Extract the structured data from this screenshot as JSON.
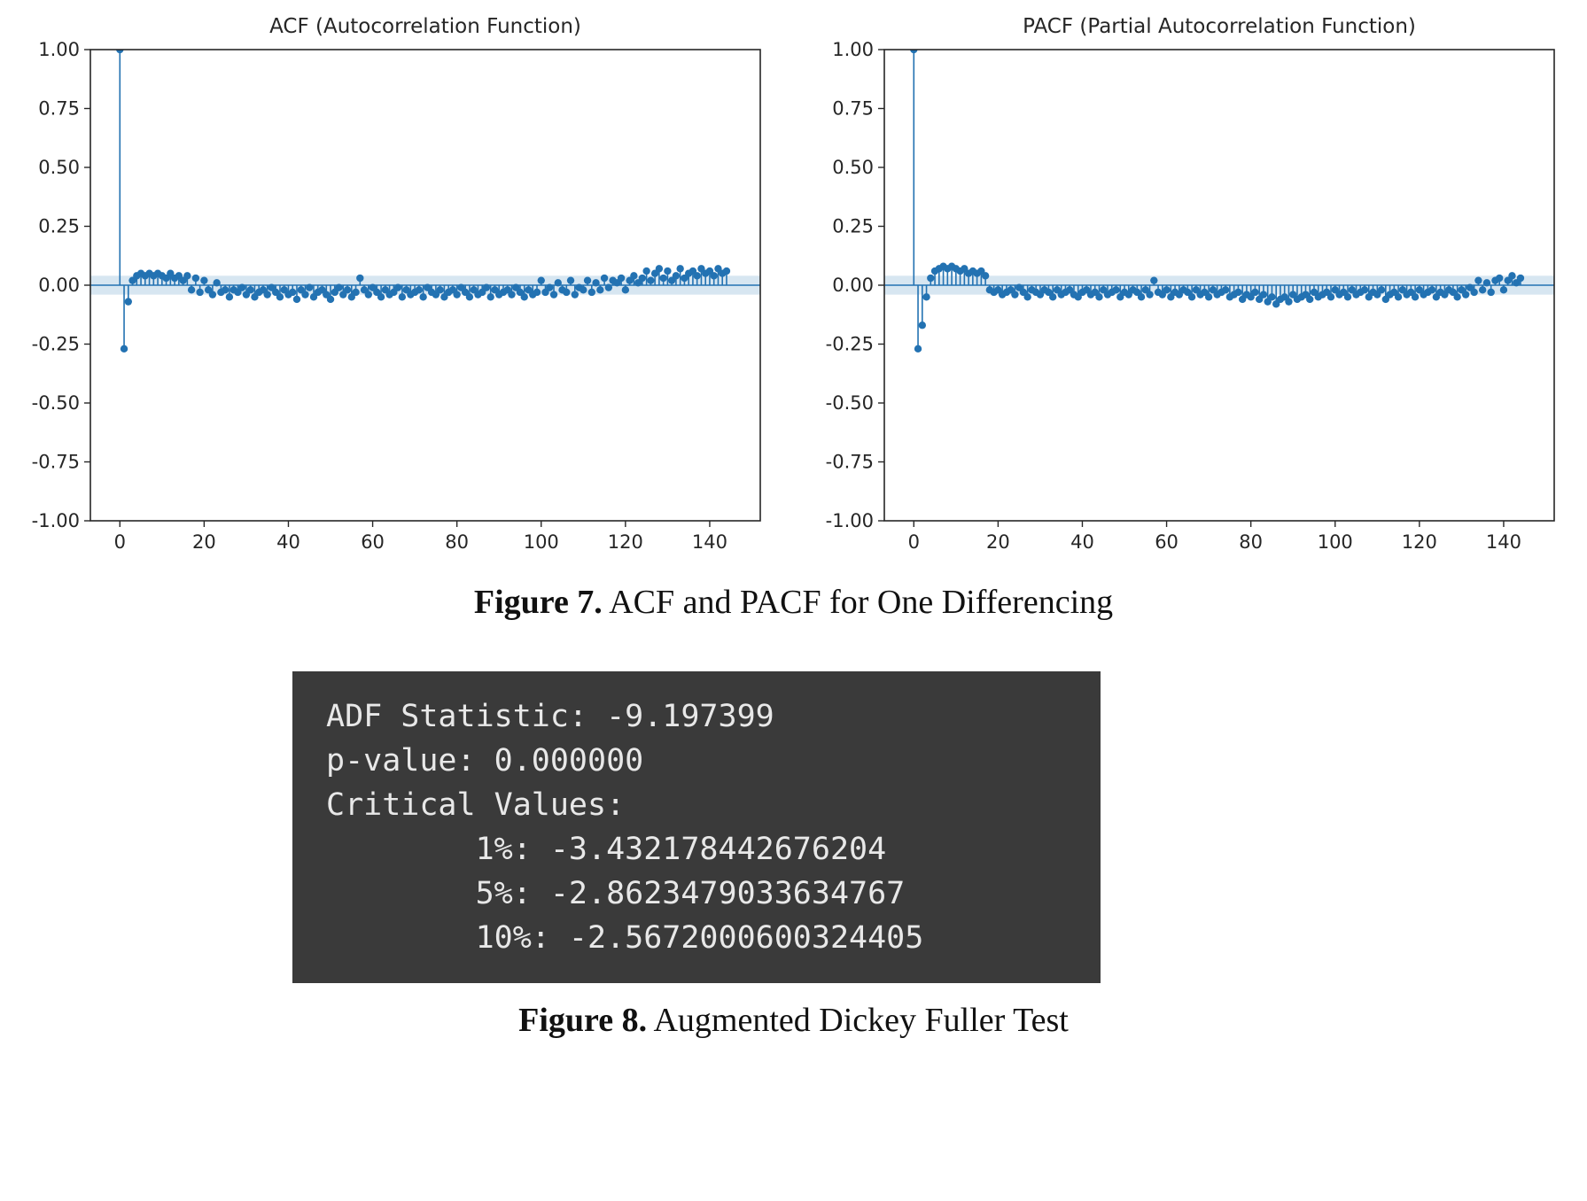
{
  "figure7": {
    "caption_label": "Figure 7.",
    "caption_text": " ACF and PACF for One Differencing"
  },
  "figure8": {
    "caption_label": "Figure 8.",
    "caption_text": " Augmented Dickey Fuller Test"
  },
  "console": {
    "background": "#3a3a3a",
    "text_color": "#e8e8e8",
    "lines": [
      "ADF Statistic: -9.197399",
      "p-value: 0.000000",
      "Critical Values:",
      "        1%: -3.432178442676204",
      "        5%: -2.8623479033634767",
      "        10%: -2.5672000600324405"
    ]
  },
  "chart_data": [
    {
      "type": "scatter",
      "style": "stem",
      "title": "ACF (Autocorrelation Function)",
      "xlabel": "",
      "ylabel": "",
      "xlim": [
        -7,
        152
      ],
      "ylim": [
        -1.0,
        1.0
      ],
      "xticks": [
        0,
        20,
        40,
        60,
        80,
        100,
        120,
        140
      ],
      "yticks": [
        -1.0,
        -0.75,
        -0.5,
        -0.25,
        0.0,
        0.25,
        0.5,
        0.75,
        1.0
      ],
      "conf_band": 0.04,
      "color": "#2372b2",
      "grid": false,
      "values": [
        1.0,
        -0.27,
        -0.07,
        0.02,
        0.04,
        0.05,
        0.04,
        0.05,
        0.04,
        0.05,
        0.04,
        0.03,
        0.05,
        0.03,
        0.04,
        0.02,
        0.04,
        -0.02,
        0.03,
        -0.03,
        0.02,
        -0.02,
        -0.04,
        0.01,
        -0.03,
        -0.02,
        -0.05,
        -0.02,
        -0.03,
        -0.01,
        -0.04,
        -0.02,
        -0.05,
        -0.03,
        -0.02,
        -0.04,
        -0.01,
        -0.03,
        -0.05,
        -0.02,
        -0.04,
        -0.03,
        -0.06,
        -0.02,
        -0.04,
        -0.01,
        -0.05,
        -0.03,
        -0.02,
        -0.04,
        -0.06,
        -0.03,
        -0.01,
        -0.04,
        -0.02,
        -0.05,
        -0.03,
        0.03,
        -0.02,
        -0.04,
        -0.01,
        -0.03,
        -0.05,
        -0.02,
        -0.04,
        -0.03,
        -0.01,
        -0.05,
        -0.02,
        -0.04,
        -0.03,
        -0.02,
        -0.05,
        -0.01,
        -0.03,
        -0.04,
        -0.02,
        -0.05,
        -0.03,
        -0.02,
        -0.04,
        -0.01,
        -0.03,
        -0.05,
        -0.02,
        -0.04,
        -0.03,
        -0.01,
        -0.05,
        -0.02,
        -0.04,
        -0.03,
        -0.02,
        -0.04,
        -0.01,
        -0.03,
        -0.05,
        -0.02,
        -0.04,
        -0.03,
        0.02,
        -0.03,
        -0.01,
        -0.04,
        0.01,
        -0.02,
        -0.03,
        0.02,
        -0.04,
        -0.01,
        -0.02,
        0.02,
        -0.03,
        0.01,
        -0.02,
        0.03,
        -0.01,
        0.02,
        0.01,
        0.03,
        -0.02,
        0.02,
        0.04,
        0.01,
        0.03,
        0.06,
        0.02,
        0.05,
        0.07,
        0.03,
        0.06,
        0.02,
        0.04,
        0.07,
        0.03,
        0.05,
        0.06,
        0.04,
        0.07,
        0.05,
        0.06,
        0.04,
        0.07,
        0.05,
        0.06
      ]
    },
    {
      "type": "scatter",
      "style": "stem",
      "title": "PACF (Partial Autocorrelation Function)",
      "xlabel": "",
      "ylabel": "",
      "xlim": [
        -7,
        152
      ],
      "ylim": [
        -1.0,
        1.0
      ],
      "xticks": [
        0,
        20,
        40,
        60,
        80,
        100,
        120,
        140
      ],
      "yticks": [
        -1.0,
        -0.75,
        -0.5,
        -0.25,
        0.0,
        0.25,
        0.5,
        0.75,
        1.0
      ],
      "conf_band": 0.04,
      "color": "#2372b2",
      "grid": false,
      "values": [
        1.0,
        -0.27,
        -0.17,
        -0.05,
        0.03,
        0.06,
        0.07,
        0.08,
        0.07,
        0.08,
        0.07,
        0.06,
        0.07,
        0.05,
        0.06,
        0.05,
        0.06,
        0.04,
        -0.02,
        -0.03,
        -0.02,
        -0.04,
        -0.03,
        -0.02,
        -0.04,
        -0.01,
        -0.03,
        -0.05,
        -0.02,
        -0.03,
        -0.04,
        -0.02,
        -0.03,
        -0.05,
        -0.02,
        -0.04,
        -0.03,
        -0.02,
        -0.04,
        -0.05,
        -0.03,
        -0.02,
        -0.04,
        -0.03,
        -0.05,
        -0.02,
        -0.04,
        -0.03,
        -0.02,
        -0.05,
        -0.03,
        -0.04,
        -0.02,
        -0.03,
        -0.05,
        -0.02,
        -0.04,
        0.02,
        -0.03,
        -0.04,
        -0.02,
        -0.05,
        -0.03,
        -0.04,
        -0.02,
        -0.03,
        -0.05,
        -0.02,
        -0.04,
        -0.03,
        -0.05,
        -0.02,
        -0.04,
        -0.03,
        -0.02,
        -0.05,
        -0.04,
        -0.03,
        -0.06,
        -0.04,
        -0.05,
        -0.03,
        -0.06,
        -0.04,
        -0.07,
        -0.05,
        -0.08,
        -0.06,
        -0.05,
        -0.07,
        -0.04,
        -0.06,
        -0.05,
        -0.04,
        -0.06,
        -0.03,
        -0.05,
        -0.04,
        -0.03,
        -0.05,
        -0.02,
        -0.04,
        -0.03,
        -0.05,
        -0.02,
        -0.04,
        -0.03,
        -0.02,
        -0.05,
        -0.03,
        -0.04,
        -0.02,
        -0.06,
        -0.04,
        -0.03,
        -0.05,
        -0.02,
        -0.04,
        -0.03,
        -0.05,
        -0.02,
        -0.04,
        -0.03,
        -0.02,
        -0.05,
        -0.03,
        -0.04,
        -0.02,
        -0.03,
        -0.05,
        -0.02,
        -0.04,
        -0.01,
        -0.03,
        0.02,
        -0.02,
        0.01,
        -0.03,
        0.02,
        0.03,
        -0.02,
        0.02,
        0.04,
        0.01,
        0.03
      ]
    }
  ]
}
